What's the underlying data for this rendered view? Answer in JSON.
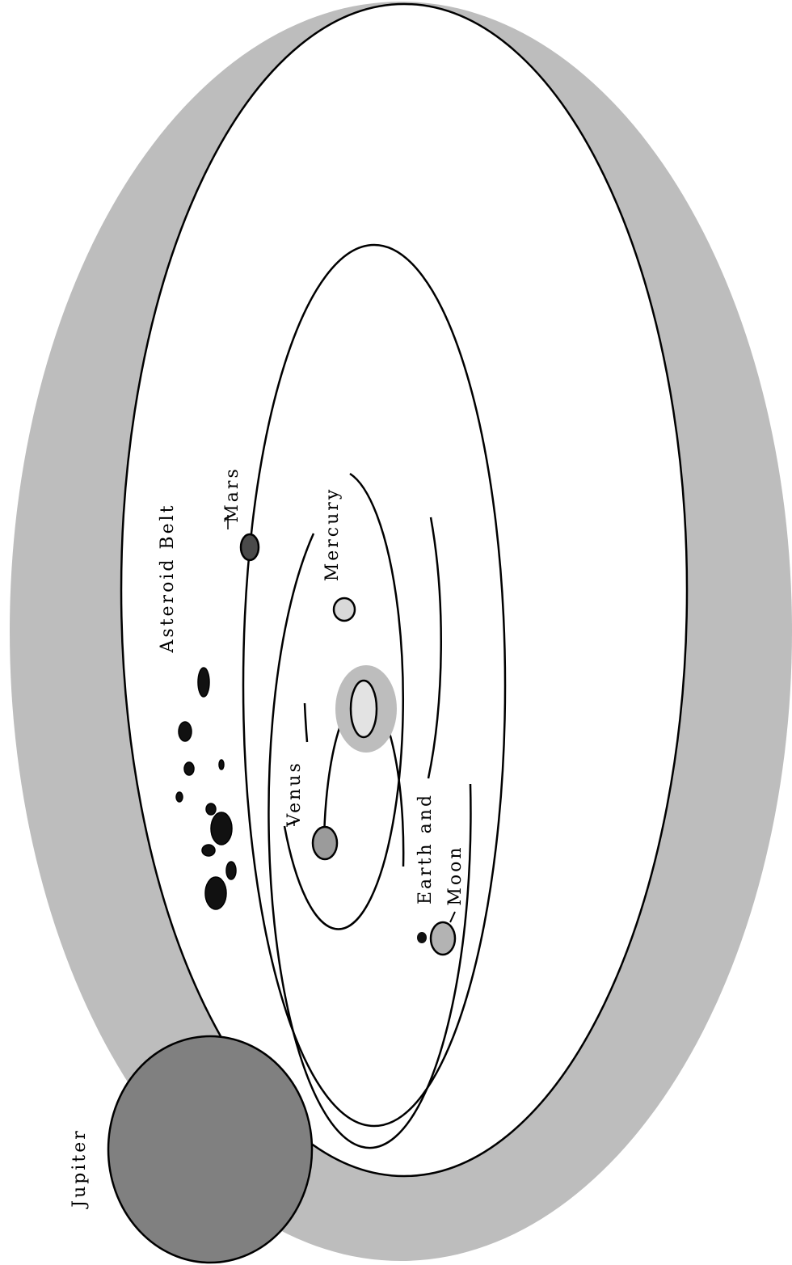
{
  "labels": {
    "asteroid_belt": "Asteroid Belt",
    "mars": "Mars",
    "mercury": "Mercury",
    "venus": "Venus",
    "earth_and_moon_line1": "Earth and",
    "earth_and_moon_line2": "Moon",
    "jupiter": "Jupiter"
  },
  "colors": {
    "outer_band": "#bdbdbd",
    "sun_glow": "#bdbdbd",
    "sun": "#e3e3e3",
    "mercury": "#d9d9d9",
    "venus": "#9b9b9b",
    "earth": "#b3b3b3",
    "moon": "#111111",
    "mars": "#4a4a4a",
    "jupiter": "#808080",
    "asteroids": "#111111"
  }
}
